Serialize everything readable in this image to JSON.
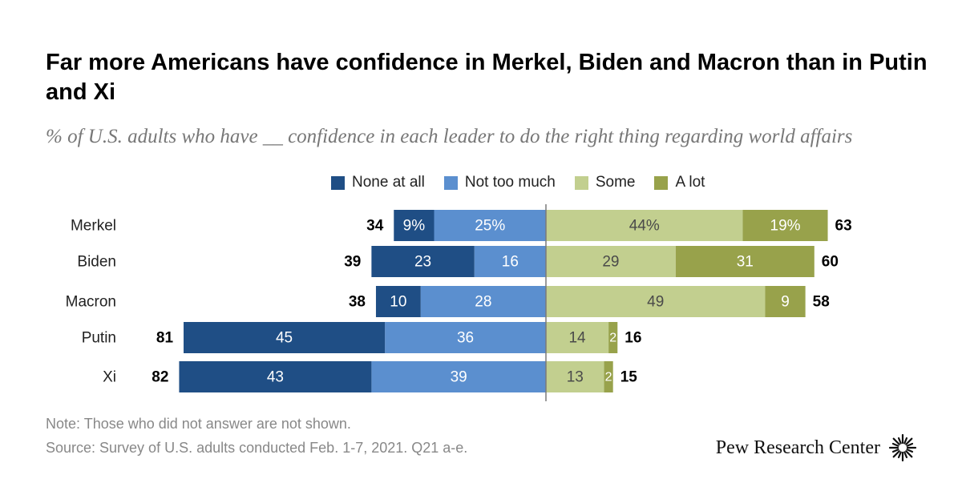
{
  "title": "Far more Americans have confidence in Merkel, Biden and Macron than in Putin and Xi",
  "subtitle": "% of U.S. adults who have __ confidence in each leader to do the right thing regarding world affairs",
  "legend": {
    "none_at_all": "None at all",
    "not_too_much": "Not too much",
    "some": "Some",
    "a_lot": "A lot"
  },
  "colors": {
    "none_at_all": "#1f4e85",
    "not_too_much": "#5b8fcf",
    "some": "#c2cf8f",
    "a_lot": "#98a24b",
    "axis": "#7a7a7a"
  },
  "chart_data": {
    "type": "bar",
    "orientation": "horizontal-diverging",
    "categories": [
      "Merkel",
      "Biden",
      "Macron",
      "Putin",
      "Xi"
    ],
    "series": [
      {
        "name": "None at all",
        "side": "negative",
        "values": [
          9,
          23,
          10,
          45,
          43
        ],
        "labels": [
          "9%",
          "23",
          "10",
          "45",
          "43"
        ]
      },
      {
        "name": "Not too much",
        "side": "negative",
        "values": [
          25,
          16,
          28,
          36,
          39
        ],
        "labels": [
          "25%",
          "16",
          "28",
          "36",
          "39"
        ]
      },
      {
        "name": "Some",
        "side": "positive",
        "values": [
          44,
          29,
          49,
          14,
          13
        ],
        "labels": [
          "44%",
          "29",
          "49",
          "14",
          "13"
        ]
      },
      {
        "name": "A lot",
        "side": "positive",
        "values": [
          19,
          31,
          9,
          2,
          2
        ],
        "labels": [
          "19%",
          "31",
          "9",
          "2",
          "2"
        ]
      }
    ],
    "totals_negative": [
      34,
      39,
      38,
      81,
      82
    ],
    "totals_positive": [
      63,
      60,
      58,
      16,
      15
    ]
  },
  "note": "Note: Those who did not answer are not shown.",
  "source": "Source: Survey of U.S. adults conducted Feb. 1-7, 2021. Q21 a-e.",
  "brand": "Pew Research Center",
  "brand_icon": "pew-sunburst-logo-icon"
}
